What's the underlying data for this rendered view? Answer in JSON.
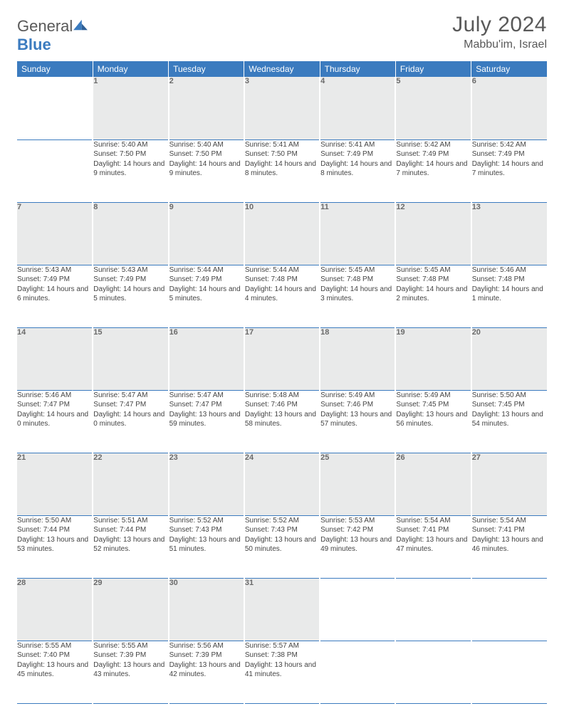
{
  "logo": {
    "word1": "General",
    "word2": "Blue"
  },
  "title": "July 2024",
  "location": "Mabbu'im, Israel",
  "colors": {
    "header_bg": "#3b7bbf",
    "header_text": "#ffffff",
    "daynum_bg": "#e9eaea",
    "daynum_text": "#6b6b6b",
    "body_text": "#444444",
    "rule": "#3b7bbf",
    "logo_gray": "#595959",
    "logo_blue": "#3b7bbf"
  },
  "weekdays": [
    "Sunday",
    "Monday",
    "Tuesday",
    "Wednesday",
    "Thursday",
    "Friday",
    "Saturday"
  ],
  "weeks": [
    {
      "nums": [
        "",
        "1",
        "2",
        "3",
        "4",
        "5",
        "6"
      ],
      "cells": [
        null,
        {
          "sr": "5:40 AM",
          "ss": "7:50 PM",
          "dl": "14 hours and 9 minutes."
        },
        {
          "sr": "5:40 AM",
          "ss": "7:50 PM",
          "dl": "14 hours and 9 minutes."
        },
        {
          "sr": "5:41 AM",
          "ss": "7:50 PM",
          "dl": "14 hours and 8 minutes."
        },
        {
          "sr": "5:41 AM",
          "ss": "7:49 PM",
          "dl": "14 hours and 8 minutes."
        },
        {
          "sr": "5:42 AM",
          "ss": "7:49 PM",
          "dl": "14 hours and 7 minutes."
        },
        {
          "sr": "5:42 AM",
          "ss": "7:49 PM",
          "dl": "14 hours and 7 minutes."
        }
      ]
    },
    {
      "nums": [
        "7",
        "8",
        "9",
        "10",
        "11",
        "12",
        "13"
      ],
      "cells": [
        {
          "sr": "5:43 AM",
          "ss": "7:49 PM",
          "dl": "14 hours and 6 minutes."
        },
        {
          "sr": "5:43 AM",
          "ss": "7:49 PM",
          "dl": "14 hours and 5 minutes."
        },
        {
          "sr": "5:44 AM",
          "ss": "7:49 PM",
          "dl": "14 hours and 5 minutes."
        },
        {
          "sr": "5:44 AM",
          "ss": "7:48 PM",
          "dl": "14 hours and 4 minutes."
        },
        {
          "sr": "5:45 AM",
          "ss": "7:48 PM",
          "dl": "14 hours and 3 minutes."
        },
        {
          "sr": "5:45 AM",
          "ss": "7:48 PM",
          "dl": "14 hours and 2 minutes."
        },
        {
          "sr": "5:46 AM",
          "ss": "7:48 PM",
          "dl": "14 hours and 1 minute."
        }
      ]
    },
    {
      "nums": [
        "14",
        "15",
        "16",
        "17",
        "18",
        "19",
        "20"
      ],
      "cells": [
        {
          "sr": "5:46 AM",
          "ss": "7:47 PM",
          "dl": "14 hours and 0 minutes."
        },
        {
          "sr": "5:47 AM",
          "ss": "7:47 PM",
          "dl": "14 hours and 0 minutes."
        },
        {
          "sr": "5:47 AM",
          "ss": "7:47 PM",
          "dl": "13 hours and 59 minutes."
        },
        {
          "sr": "5:48 AM",
          "ss": "7:46 PM",
          "dl": "13 hours and 58 minutes."
        },
        {
          "sr": "5:49 AM",
          "ss": "7:46 PM",
          "dl": "13 hours and 57 minutes."
        },
        {
          "sr": "5:49 AM",
          "ss": "7:45 PM",
          "dl": "13 hours and 56 minutes."
        },
        {
          "sr": "5:50 AM",
          "ss": "7:45 PM",
          "dl": "13 hours and 54 minutes."
        }
      ]
    },
    {
      "nums": [
        "21",
        "22",
        "23",
        "24",
        "25",
        "26",
        "27"
      ],
      "cells": [
        {
          "sr": "5:50 AM",
          "ss": "7:44 PM",
          "dl": "13 hours and 53 minutes."
        },
        {
          "sr": "5:51 AM",
          "ss": "7:44 PM",
          "dl": "13 hours and 52 minutes."
        },
        {
          "sr": "5:52 AM",
          "ss": "7:43 PM",
          "dl": "13 hours and 51 minutes."
        },
        {
          "sr": "5:52 AM",
          "ss": "7:43 PM",
          "dl": "13 hours and 50 minutes."
        },
        {
          "sr": "5:53 AM",
          "ss": "7:42 PM",
          "dl": "13 hours and 49 minutes."
        },
        {
          "sr": "5:54 AM",
          "ss": "7:41 PM",
          "dl": "13 hours and 47 minutes."
        },
        {
          "sr": "5:54 AM",
          "ss": "7:41 PM",
          "dl": "13 hours and 46 minutes."
        }
      ]
    },
    {
      "nums": [
        "28",
        "29",
        "30",
        "31",
        "",
        "",
        ""
      ],
      "cells": [
        {
          "sr": "5:55 AM",
          "ss": "7:40 PM",
          "dl": "13 hours and 45 minutes."
        },
        {
          "sr": "5:55 AM",
          "ss": "7:39 PM",
          "dl": "13 hours and 43 minutes."
        },
        {
          "sr": "5:56 AM",
          "ss": "7:39 PM",
          "dl": "13 hours and 42 minutes."
        },
        {
          "sr": "5:57 AM",
          "ss": "7:38 PM",
          "dl": "13 hours and 41 minutes."
        },
        null,
        null,
        null
      ]
    }
  ],
  "labels": {
    "sunrise": "Sunrise:",
    "sunset": "Sunset:",
    "daylight": "Daylight:"
  }
}
